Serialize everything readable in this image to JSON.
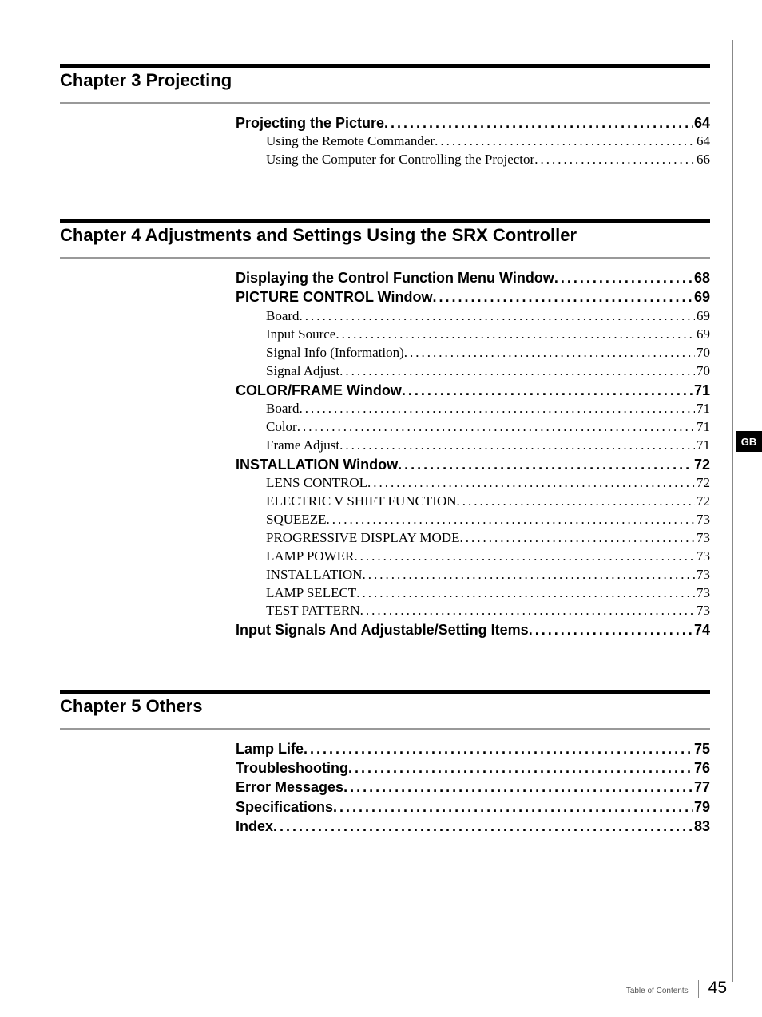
{
  "chapters": [
    {
      "title": "Chapter 3   Projecting",
      "entries": [
        {
          "level": 0,
          "title": "Projecting the Picture ",
          "page": "64"
        },
        {
          "level": 1,
          "title": "Using the Remote Commander ",
          "page": " 64"
        },
        {
          "level": 1,
          "title": "Using the Computer for Controlling the Projector",
          "page": " 66"
        }
      ]
    },
    {
      "title": "Chapter 4   Adjustments and Settings Using the SRX Controller",
      "entries": [
        {
          "level": 0,
          "title": "Displaying the Control Function Menu Window ",
          "page": "68"
        },
        {
          "level": 0,
          "title": "PICTURE CONTROL Window ",
          "page": "69"
        },
        {
          "level": 1,
          "title": "Board ",
          "page": " 69"
        },
        {
          "level": 1,
          "title": "Input Source ",
          "page": " 69"
        },
        {
          "level": 1,
          "title": "Signal Info (Information) ",
          "page": " 70"
        },
        {
          "level": 1,
          "title": "Signal Adjust",
          "page": " 70"
        },
        {
          "level": 0,
          "title": "COLOR/FRAME Window ",
          "page": "71"
        },
        {
          "level": 1,
          "title": "Board ",
          "page": " 71"
        },
        {
          "level": 1,
          "title": "Color",
          "page": " 71"
        },
        {
          "level": 1,
          "title": "Frame Adjust",
          "page": " 71"
        },
        {
          "level": 0,
          "title": "INSTALLATION Window",
          "page": "72"
        },
        {
          "level": 1,
          "title": "LENS CONTROL",
          "page": " 72"
        },
        {
          "level": 1,
          "title": "ELECTRIC V SHIFT FUNCTION",
          "page": " 72"
        },
        {
          "level": 1,
          "title": "SQUEEZE ",
          "page": " 73"
        },
        {
          "level": 1,
          "title": "PROGRESSIVE DISPLAY MODE ",
          "page": " 73"
        },
        {
          "level": 1,
          "title": "LAMP POWER",
          "page": " 73"
        },
        {
          "level": 1,
          "title": "INSTALLATION",
          "page": " 73"
        },
        {
          "level": 1,
          "title": "LAMP SELECT ",
          "page": " 73"
        },
        {
          "level": 1,
          "title": "TEST PATTERN ",
          "page": " 73"
        },
        {
          "level": 0,
          "title": "Input Signals And Adjustable/Setting Items ",
          "page": "74"
        }
      ]
    },
    {
      "title": "Chapter 5   Others",
      "entries": [
        {
          "level": 0,
          "title": "Lamp Life",
          "page": "75"
        },
        {
          "level": 0,
          "title": "Troubleshooting ",
          "page": "76"
        },
        {
          "level": 0,
          "title": "Error Messages",
          "page": "77"
        },
        {
          "level": 0,
          "title": "Specifications ",
          "page": "79"
        },
        {
          "level": 0,
          "title": "Index ",
          "page": "83"
        }
      ]
    }
  ],
  "side_tab": "GB",
  "footer_label": "Table of Contents",
  "footer_page": "45"
}
